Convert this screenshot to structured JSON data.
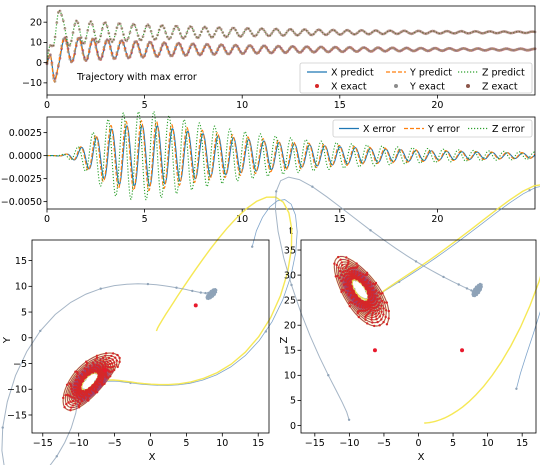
{
  "colors": {
    "x_line": "#1f77b4",
    "y_line": "#ff7f0e",
    "z_line": "#2ca02c",
    "x_exact": "#d62728",
    "y_exact": "#8c8c8c",
    "z_exact": "#8c564b",
    "phase_blue": "#4a7fb5",
    "phase_gray": "#8fa3b8",
    "phase_yellow": "#f5e642",
    "phase_red": "#d62728",
    "phase_purple": "#9b2a6b",
    "fixed_point": "#e8192c"
  },
  "chart_data": [
    {
      "type": "line",
      "title": "",
      "annotation": "Trajectory with max error",
      "xlabel": "",
      "ylabel": "",
      "xlim": [
        0,
        25
      ],
      "ylim": [
        -16,
        28
      ],
      "xticks": [
        0,
        5,
        10,
        15,
        20
      ],
      "yticks": [
        -10,
        0,
        10,
        20
      ],
      "legend_position": "bottom-right",
      "series": [
        {
          "name": "X predict",
          "style": "solid",
          "shape": "damped oscillation",
          "start": -0.5,
          "steady": 6.5,
          "period": 0.73,
          "decay": 0.12
        },
        {
          "name": "Y predict",
          "style": "dashed",
          "shape": "damped oscillation",
          "start": -0.5,
          "steady": 6.5,
          "period": 0.73,
          "decay": 0.12
        },
        {
          "name": "Z predict",
          "style": "dotted",
          "shape": "damped oscillation",
          "start": 0,
          "steady": 15,
          "period": 0.73,
          "decay": 0.12
        },
        {
          "name": "X exact",
          "style": "markers"
        },
        {
          "name": "Y exact",
          "style": "markers"
        },
        {
          "name": "Z exact",
          "style": "markers"
        }
      ]
    },
    {
      "type": "line",
      "title": "",
      "xlabel": "t",
      "ylabel": "",
      "xlim": [
        0,
        25
      ],
      "ylim": [
        -0.0058,
        0.0042
      ],
      "xticks": [
        0,
        5,
        10,
        15,
        20
      ],
      "yticks": [
        -0.005,
        -0.0025,
        0.0,
        0.0025
      ],
      "ytick_labels": [
        "−0.0050",
        "−0.0025",
        "0.0000",
        "0.0025"
      ],
      "legend_position": "top-right",
      "series": [
        {
          "name": "X error",
          "style": "solid",
          "peak_amplitude": 0.0033,
          "peak_t": 5.5
        },
        {
          "name": "Y error",
          "style": "dashed",
          "peak_amplitude": 0.0038,
          "peak_t": 5.5
        },
        {
          "name": "Z error",
          "style": "dotted",
          "peak_amplitude": 0.0048,
          "peak_t": 5.5
        }
      ]
    },
    {
      "type": "scatter",
      "title": "",
      "xlabel": "X",
      "ylabel": "Y",
      "xlim": [
        -16.5,
        16.5
      ],
      "ylim": [
        -18.5,
        19
      ],
      "xticks": [
        -15,
        -10,
        -5,
        0,
        5,
        10,
        15
      ],
      "yticks": [
        -15,
        -10,
        -5,
        0,
        5,
        10,
        15
      ],
      "fixed_points": [
        [
          -6.3,
          -6.3
        ],
        [
          6.3,
          6.3
        ]
      ]
    },
    {
      "type": "scatter",
      "title": "",
      "xlabel": "X",
      "ylabel": "Z",
      "xlim": [
        -17,
        17
      ],
      "ylim": [
        -1.5,
        37
      ],
      "xticks": [
        -15,
        -10,
        -5,
        0,
        5,
        10,
        15
      ],
      "yticks": [
        0,
        5,
        10,
        15,
        20,
        25,
        30,
        35
      ],
      "fixed_points": [
        [
          -6.3,
          15
        ],
        [
          6.3,
          15
        ]
      ]
    }
  ]
}
